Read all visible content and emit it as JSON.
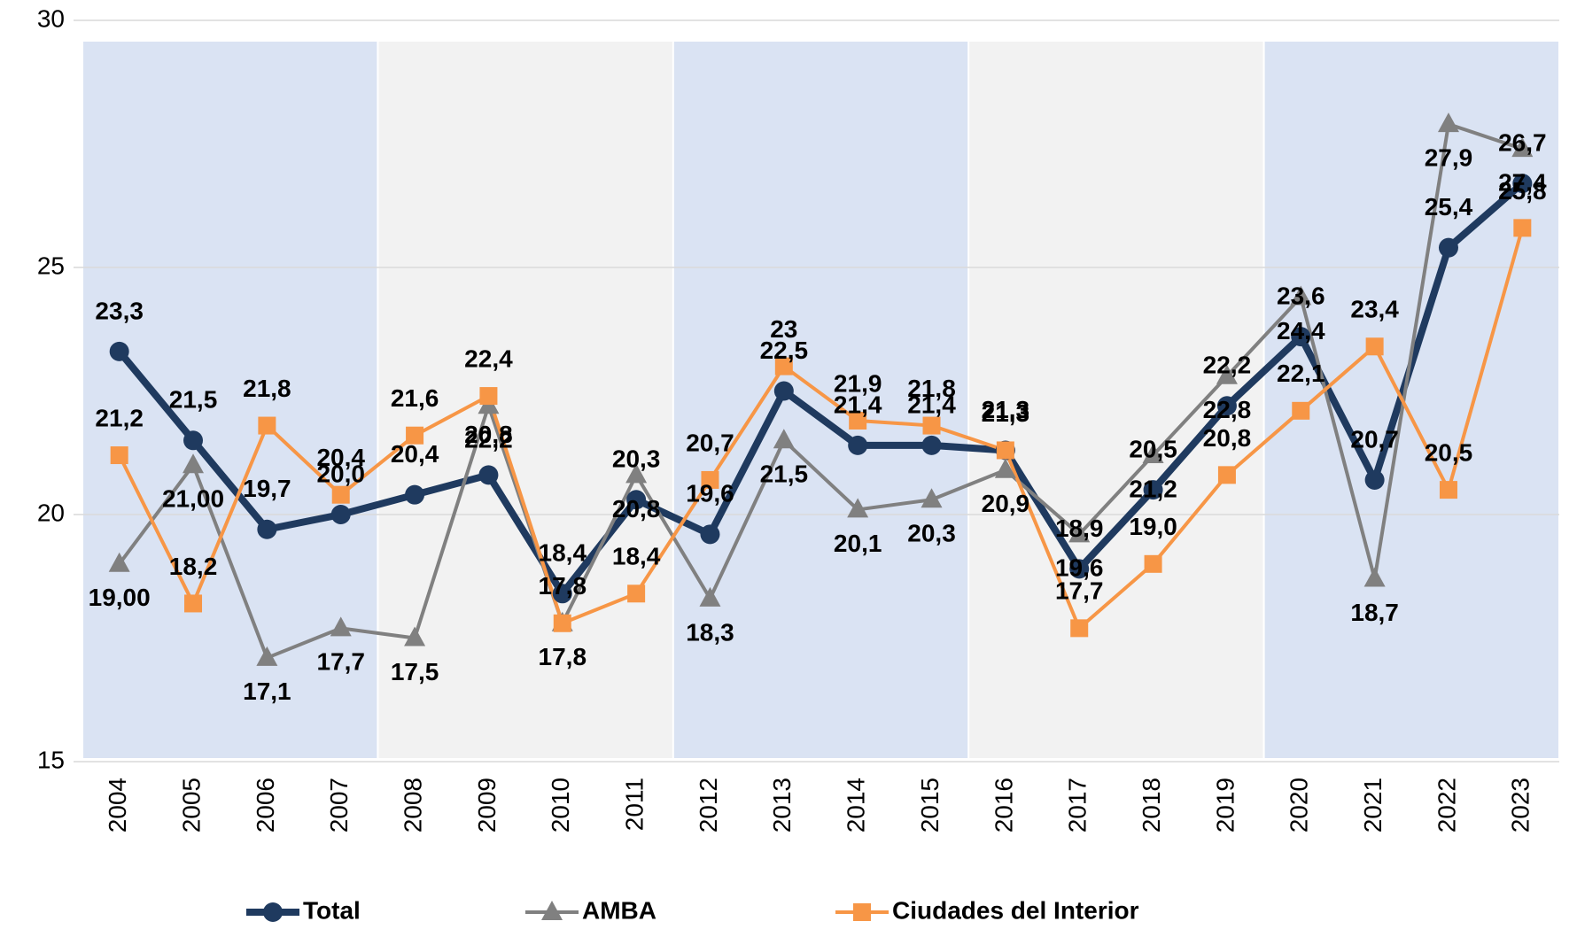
{
  "chart_data": {
    "type": "line",
    "categories": [
      "2004",
      "2005",
      "2006",
      "2007",
      "2008",
      "2009",
      "2010",
      "2011",
      "2012",
      "2013",
      "2014",
      "2015",
      "2016",
      "2017",
      "2018",
      "2019",
      "2020",
      "2021",
      "2022",
      "2023"
    ],
    "series": [
      {
        "name": "Total",
        "color": "#1f3a5f",
        "marker": "circle",
        "values": [
          23.3,
          21.5,
          19.7,
          20.0,
          20.4,
          20.8,
          18.4,
          20.3,
          19.6,
          22.5,
          21.4,
          21.4,
          21.3,
          18.9,
          20.5,
          22.2,
          23.6,
          20.7,
          25.4,
          26.7
        ],
        "value_labels": [
          "23,3",
          "21,5",
          "19,7",
          "20,0",
          "20,4",
          "20,8",
          "18,4",
          "20,3",
          "19,6",
          "22,5",
          "21,4",
          "21,4",
          "21,3",
          "18,9",
          "20,5",
          "22,2",
          "23,6",
          "20,7",
          "25,4",
          "26,7"
        ]
      },
      {
        "name": "AMBA",
        "color": "#808080",
        "marker": "triangle",
        "values": [
          19.0,
          21.0,
          17.1,
          17.7,
          17.5,
          22.2,
          17.8,
          20.8,
          18.3,
          21.5,
          20.1,
          20.3,
          20.9,
          19.6,
          21.2,
          22.8,
          24.4,
          18.7,
          27.9,
          27.4
        ],
        "value_labels": [
          "19,00",
          "21,00",
          "17,1",
          "17,7",
          "17,5",
          "22,2",
          "17,8",
          "20,8",
          "18,3",
          "21,5",
          "20,1",
          "20,3",
          "20,9",
          "19,6",
          "21,2",
          "22,8",
          "24,4",
          "18,7",
          "27,9",
          "27,4"
        ]
      },
      {
        "name": "Ciudades del Interior",
        "color": "#f79646",
        "marker": "square",
        "values": [
          21.2,
          18.2,
          21.8,
          20.4,
          21.6,
          22.4,
          17.8,
          18.4,
          20.7,
          23,
          21.9,
          21.8,
          21.3,
          17.7,
          19.0,
          20.8,
          22.1,
          23.4,
          20.5,
          25.8
        ],
        "value_labels": [
          "21,2",
          "18,2",
          "21,8",
          "20,4",
          "21,6",
          "22,4",
          "17,8",
          "18,4",
          "20,7",
          "23",
          "21,9",
          "21,8",
          "21,3",
          "17,7",
          "19,0",
          "20,8",
          "22,1",
          "23,4",
          "20,5",
          "25,8"
        ]
      }
    ],
    "ylim": [
      15,
      30
    ],
    "yticks": [
      15,
      20,
      25,
      30
    ],
    "grid": true,
    "legend": "bottom"
  }
}
